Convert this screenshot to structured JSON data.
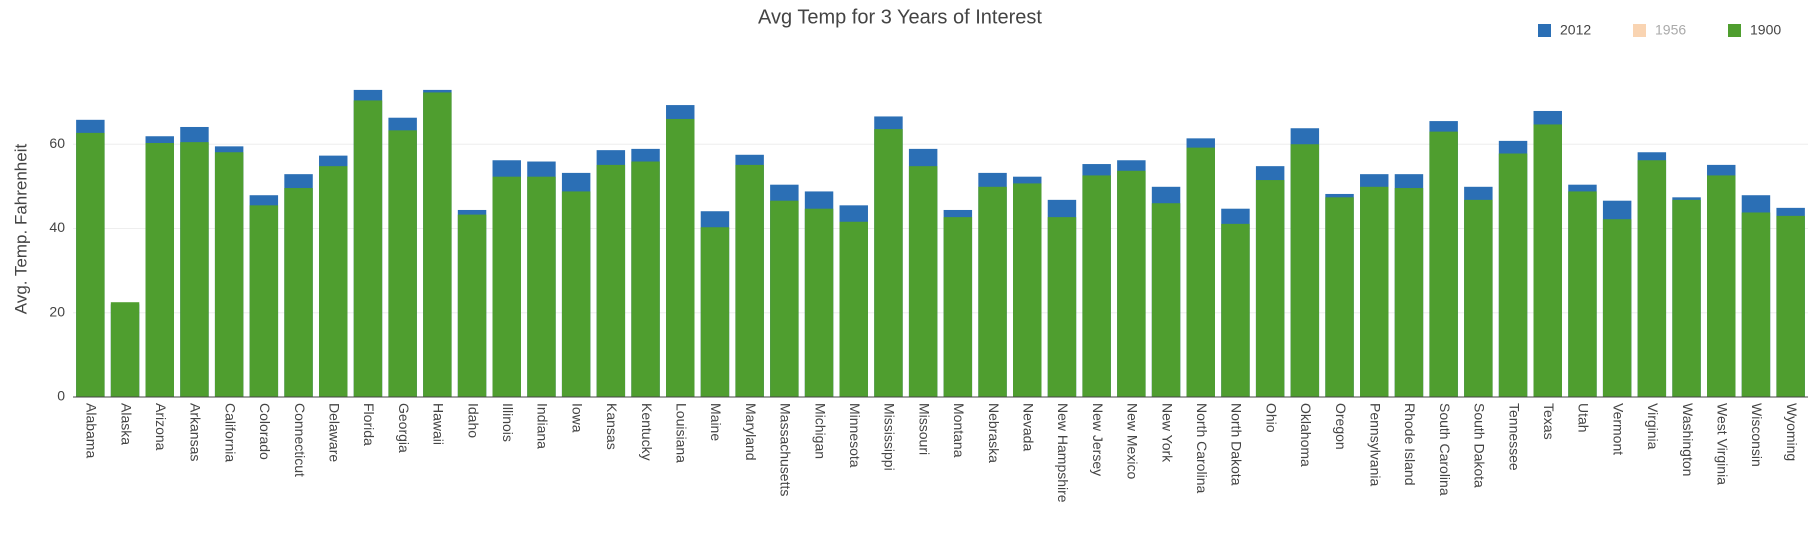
{
  "chart_data": {
    "type": "bar",
    "title": "Avg Temp for 3 Years of Interest",
    "y_label": "Avg. Temp. Fahrenheit",
    "categories": [
      "Alabama",
      "Alaska",
      "Arizona",
      "Arkansas",
      "California",
      "Colorado",
      "Connecticut",
      "Delaware",
      "Florida",
      "Georgia",
      "Hawaii",
      "Idaho",
      "Illinois",
      "Indiana",
      "Iowa",
      "Kansas",
      "Kentucky",
      "Louisiana",
      "Maine",
      "Maryland",
      "Massachusetts",
      "Michigan",
      "Minnesota",
      "Mississippi",
      "Missouri",
      "Montana",
      "Nebraska",
      "Nevada",
      "New Hampshire",
      "New Jersey",
      "New Mexico",
      "New York",
      "North Carolina",
      "North Dakota",
      "Ohio",
      "Oklahoma",
      "Oregon",
      "Pennsylvania",
      "Rhode Island",
      "South Carolina",
      "South Dakota",
      "Tennessee",
      "Texas",
      "Utah",
      "Vermont",
      "Virginia",
      "Washington",
      "West Virginia",
      "Wisconsin",
      "Wyoming"
    ],
    "series": [
      {
        "name": "2012",
        "color": "#2b6fb5",
        "visible": true,
        "values": [
          65.8,
          22,
          61.9,
          64.1,
          59.5,
          47.9,
          52.9,
          57.3,
          72.9,
          66.3,
          72.9,
          44.4,
          56.2,
          55.9,
          53.2,
          58.6,
          58.9,
          69.3,
          44.1,
          57.5,
          50.4,
          48.8,
          45.5,
          66.6,
          58.9,
          44.4,
          53.2,
          52.3,
          46.8,
          55.3,
          56.2,
          49.9,
          61.4,
          44.7,
          54.8,
          63.8,
          48.2,
          52.9,
          52.9,
          65.5,
          49.9,
          60.8,
          67.9,
          50.4,
          46.6,
          58.1,
          47.4,
          55.1,
          47.9,
          44.9
        ]
      },
      {
        "name": "1956",
        "color": "#f5b87f",
        "visible": false,
        "values": [
          null,
          null,
          null,
          null,
          null,
          null,
          null,
          null,
          null,
          null,
          null,
          null,
          null,
          null,
          null,
          null,
          null,
          null,
          null,
          null,
          null,
          null,
          null,
          null,
          null,
          null,
          null,
          null,
          null,
          null,
          null,
          null,
          null,
          null,
          null,
          null,
          null,
          null,
          null,
          null,
          null,
          null,
          null,
          null,
          null,
          null,
          null,
          null,
          null,
          null
        ]
      },
      {
        "name": "1900",
        "color": "#4f9e2f",
        "visible": true,
        "values": [
          62.7,
          22.5,
          60.3,
          60.5,
          58.1,
          45.5,
          49.6,
          54.8,
          70.4,
          63.3,
          72.3,
          43.3,
          52.3,
          52.3,
          48.8,
          55.1,
          55.9,
          66.0,
          40.3,
          55.1,
          46.6,
          44.7,
          41.6,
          63.6,
          54.8,
          42.7,
          49.9,
          50.7,
          42.7,
          52.6,
          53.7,
          46.0,
          59.2,
          41.1,
          51.5,
          60.0,
          47.4,
          49.9,
          49.6,
          63.0,
          46.8,
          57.8,
          64.7,
          48.8,
          42.2,
          56.2,
          46.8,
          52.6,
          43.8,
          43.0
        ]
      }
    ],
    "ylim": [
      0,
      80
    ],
    "yticks": [
      0,
      20,
      40,
      60
    ],
    "grid": true,
    "legend": "top-right"
  }
}
